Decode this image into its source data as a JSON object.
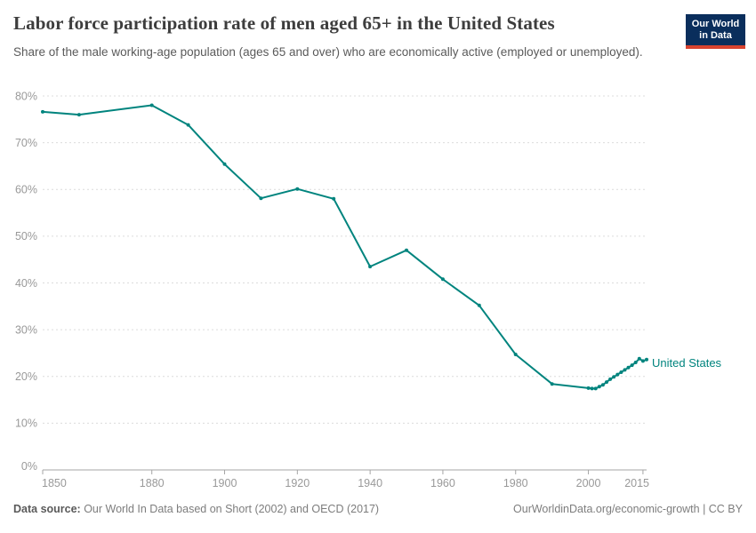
{
  "header": {
    "logo": {
      "line1": "Our World",
      "line2": "in Data",
      "bg_color": "#0a2e5c",
      "stripe_color": "#d8432f"
    }
  },
  "chart_data": {
    "type": "line",
    "title": "Labor force participation rate of men aged 65+ in the United States",
    "subtitle": "Share of the male working-age population (ages 65 and over) who are economically active (employed or unemployed).",
    "xlabel": "",
    "ylabel": "",
    "xlim": [
      1850,
      2016
    ],
    "ylim": [
      0,
      80
    ],
    "x_ticks": [
      1850,
      1880,
      1900,
      1920,
      1940,
      1960,
      1980,
      2000,
      2015
    ],
    "y_ticks": [
      0,
      10,
      20,
      30,
      40,
      50,
      60,
      70,
      80
    ],
    "y_tick_suffix": "%",
    "grid": "horizontal-dashed",
    "grid_color": "#dcdcdc",
    "axis_color": "#a5a5a5",
    "tick_label_color": "#999999",
    "legend_position": "end-of-line-label",
    "series": [
      {
        "name": "United States",
        "color": "#00847E",
        "points": [
          [
            1850,
            76.6
          ],
          [
            1860,
            76.0
          ],
          [
            1880,
            78.0
          ],
          [
            1890,
            73.8
          ],
          [
            1900,
            65.4
          ],
          [
            1910,
            58.1
          ],
          [
            1920,
            60.1
          ],
          [
            1930,
            58.0
          ],
          [
            1940,
            43.5
          ],
          [
            1950,
            47.0
          ],
          [
            1960,
            40.8
          ],
          [
            1970,
            35.2
          ],
          [
            1980,
            24.7
          ],
          [
            1990,
            18.4
          ],
          [
            2000,
            17.5
          ],
          [
            2001,
            17.4
          ],
          [
            2002,
            17.4
          ],
          [
            2003,
            17.8
          ],
          [
            2004,
            18.2
          ],
          [
            2005,
            18.8
          ],
          [
            2006,
            19.4
          ],
          [
            2007,
            19.9
          ],
          [
            2008,
            20.4
          ],
          [
            2009,
            20.9
          ],
          [
            2010,
            21.4
          ],
          [
            2011,
            21.9
          ],
          [
            2012,
            22.4
          ],
          [
            2013,
            23.0
          ],
          [
            2014,
            23.8
          ],
          [
            2015,
            23.3
          ],
          [
            2016,
            23.6
          ]
        ]
      }
    ]
  },
  "footer": {
    "datasource_label": "Data source:",
    "datasource_text": " Our World In Data based on Short (2002) and OECD (2017)",
    "credit_text": "OurWorldinData.org/economic-growth | CC BY"
  }
}
